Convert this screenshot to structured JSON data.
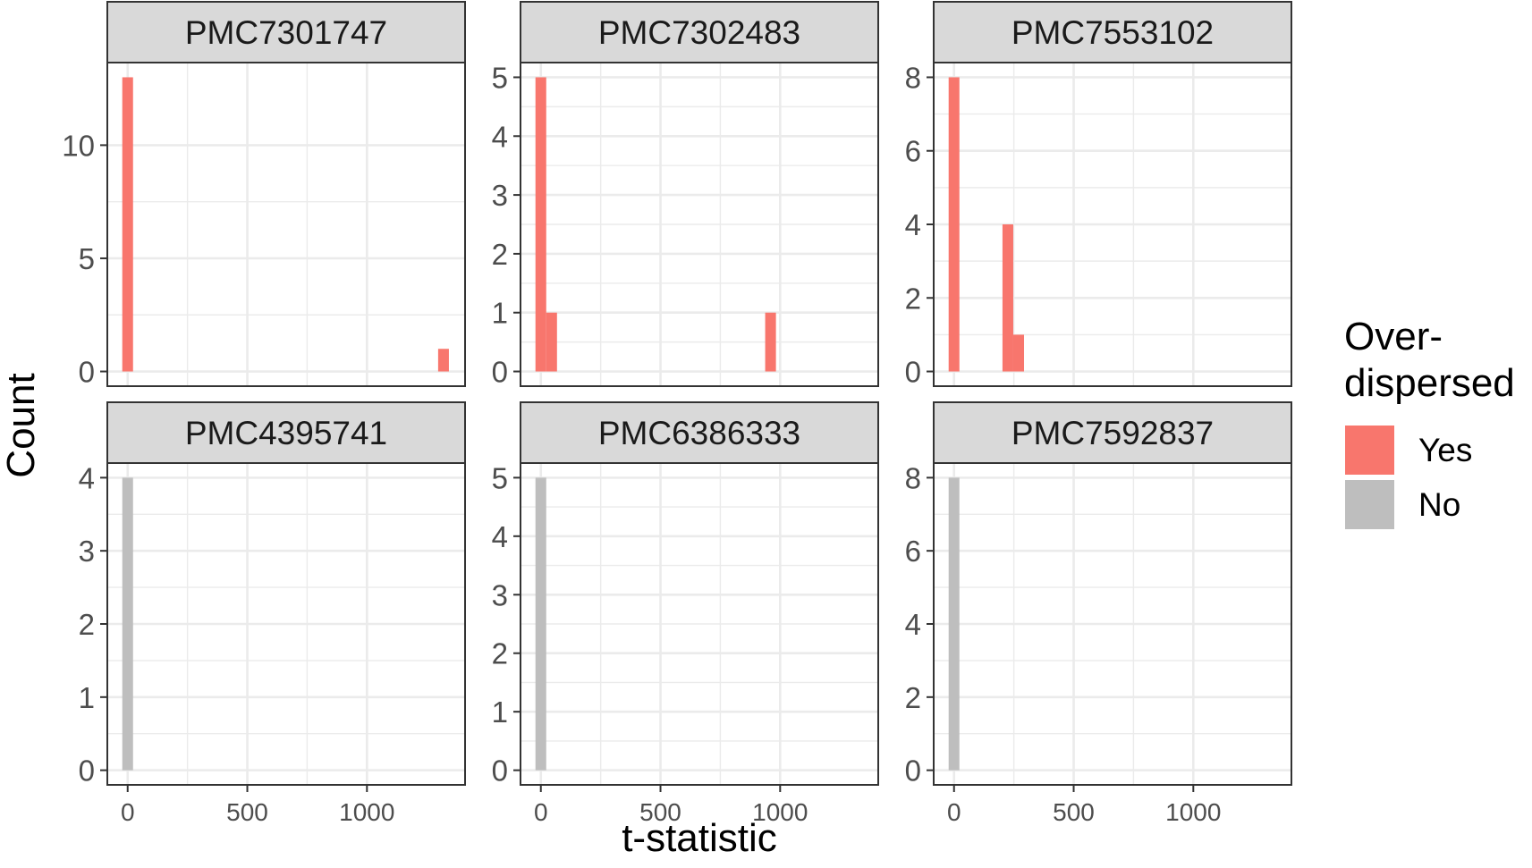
{
  "chart_data": {
    "type": "histogram-facets",
    "xlabel": "t-statistic",
    "ylabel": "Count",
    "x_ticks": [
      0,
      500,
      1000
    ],
    "xlim": [
      -85,
      1410
    ],
    "bin_width": 45,
    "legend": {
      "title": "Over-\ndispersed",
      "position": "right",
      "entries": [
        {
          "label": "Yes",
          "color": "#F8766D"
        },
        {
          "label": "No",
          "color": "#BEBEBE"
        }
      ]
    },
    "strip_fill": "#D9D9D9",
    "facets": [
      {
        "title": "PMC7301747",
        "fill": "#F8766D",
        "ylim": [
          -0.65,
          13.65
        ],
        "y_ticks": [
          0,
          5,
          10
        ],
        "bins": [
          {
            "x": 0,
            "count": 13
          },
          {
            "x": 1320,
            "count": 1
          }
        ]
      },
      {
        "title": "PMC7302483",
        "fill": "#F8766D",
        "ylim": [
          -0.25,
          5.25
        ],
        "y_ticks": [
          0,
          1,
          2,
          3,
          4,
          5
        ],
        "bins": [
          {
            "x": 0,
            "count": 5
          },
          {
            "x": 45,
            "count": 1
          },
          {
            "x": 960,
            "count": 1
          }
        ]
      },
      {
        "title": "PMC7553102",
        "fill": "#F8766D",
        "ylim": [
          -0.4,
          8.4
        ],
        "y_ticks": [
          0,
          2,
          4,
          6,
          8
        ],
        "bins": [
          {
            "x": 0,
            "count": 8
          },
          {
            "x": 225,
            "count": 4
          },
          {
            "x": 270,
            "count": 1
          }
        ]
      },
      {
        "title": "PMC4395741",
        "fill": "#BEBEBE",
        "ylim": [
          -0.2,
          4.2
        ],
        "y_ticks": [
          0,
          1,
          2,
          3,
          4
        ],
        "bins": [
          {
            "x": 0,
            "count": 4
          }
        ]
      },
      {
        "title": "PMC6386333",
        "fill": "#BEBEBE",
        "ylim": [
          -0.25,
          5.25
        ],
        "y_ticks": [
          0,
          1,
          2,
          3,
          4,
          5
        ],
        "bins": [
          {
            "x": 0,
            "count": 5
          }
        ]
      },
      {
        "title": "PMC7592837",
        "fill": "#BEBEBE",
        "ylim": [
          -0.4,
          8.4
        ],
        "y_ticks": [
          0,
          2,
          4,
          6,
          8
        ],
        "bins": [
          {
            "x": 0,
            "count": 8
          }
        ]
      }
    ]
  }
}
